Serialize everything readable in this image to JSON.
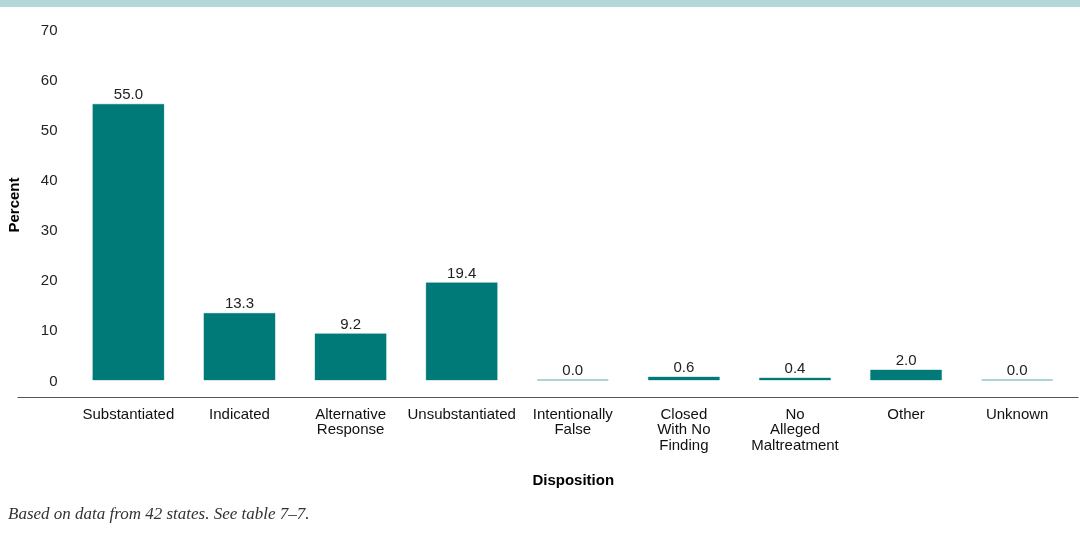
{
  "chart_data": {
    "type": "bar",
    "xlabel": "Disposition",
    "ylabel": "Percent",
    "categories": [
      "Substantiated",
      "Indicated",
      "Alternative Response",
      "Unsubstantiated",
      "Intentionally False",
      "Closed With No Finding",
      "No Alleged Maltreatment",
      "Other",
      "Unknown"
    ],
    "values": [
      55.0,
      13.3,
      9.2,
      19.4,
      0.0,
      0.6,
      0.4,
      2.0,
      0.0
    ],
    "value_labels": [
      "55.0",
      "13.3",
      "9.2",
      "19.4",
      "0.0",
      "0.6",
      "0.4",
      "2.0",
      "0.0"
    ],
    "color": "#007a78",
    "ylim": [
      0,
      70
    ],
    "yticks": [
      0,
      10,
      20,
      30,
      40,
      50,
      60,
      70
    ],
    "annotations": [
      "Based on data from 42 states. See table 7–7."
    ]
  }
}
